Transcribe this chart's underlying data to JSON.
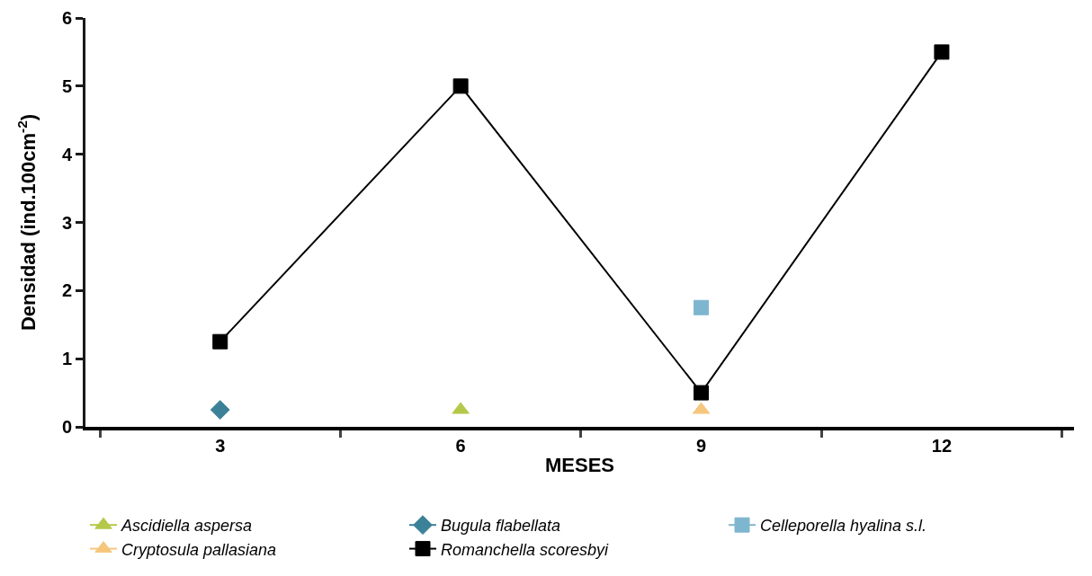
{
  "chart_data": {
    "type": "line",
    "xlabel": "MESES",
    "ylabel": "Densidad (ind.100cm$^{-2}$)",
    "categories": [
      "3",
      "6",
      "9",
      "12"
    ],
    "ylim": [
      0,
      6
    ],
    "yticks": [
      0,
      1,
      2,
      3,
      4,
      5,
      6
    ],
    "grid": false,
    "legend": "bottom",
    "line_style": "solid",
    "series": [
      {
        "name": "Ascidiella aspersa",
        "color": "#b5c84a",
        "marker": "triangle",
        "values": [
          null,
          0.25,
          null,
          null
        ]
      },
      {
        "name": "Bugula flabellata",
        "color": "#3b8197",
        "marker": "diamond",
        "values": [
          0.25,
          null,
          null,
          null
        ]
      },
      {
        "name": "Celleporella hyalina s.l.",
        "color": "#7fb6cf",
        "marker": "square",
        "values": [
          null,
          null,
          1.75,
          null
        ]
      },
      {
        "name": "Cryptosula pallasiana",
        "color": "#f5c77e",
        "marker": "triangle",
        "values": [
          null,
          null,
          0.25,
          null
        ]
      },
      {
        "name": "Romanchella scoresbyi",
        "color": "#000000",
        "marker": "square",
        "values": [
          1.25,
          5,
          0.5,
          5.5
        ]
      }
    ]
  }
}
